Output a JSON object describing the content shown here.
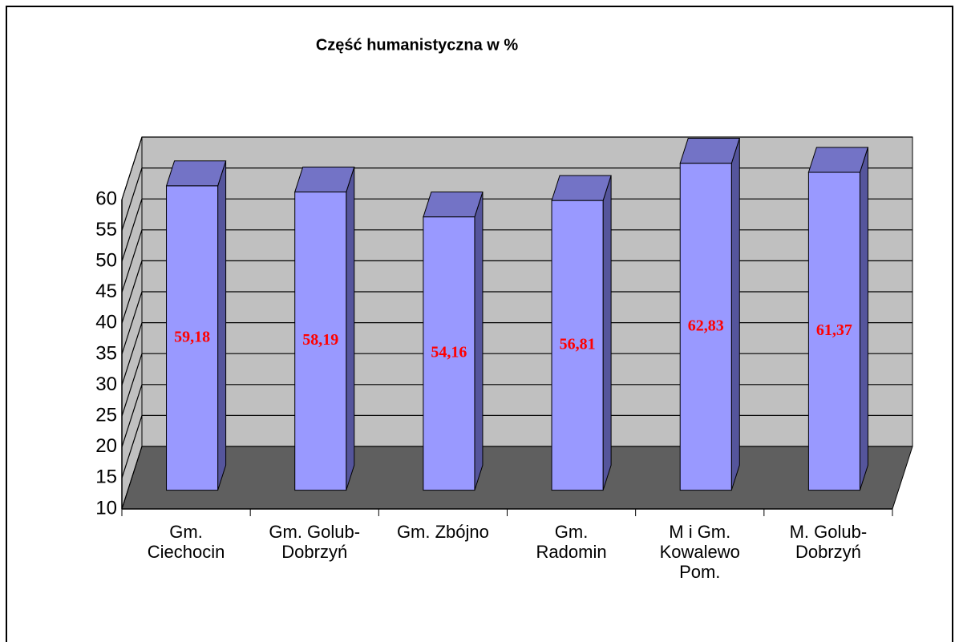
{
  "chart_data": {
    "type": "bar3d",
    "title": "Część humanistyczna w %",
    "categories": [
      "Gm.\nCiechocin",
      "Gm. Golub-\nDobrzyń",
      "Gm. Zbójno",
      "Gm.\nRadomin",
      "M i Gm.\nKowalewo\nPom.",
      "M. Golub-\nDobrzyń"
    ],
    "values": [
      59.18,
      58.19,
      54.16,
      56.81,
      62.83,
      61.37
    ],
    "value_labels": [
      "59,18",
      "58,19",
      "54,16",
      "56,81",
      "62,83",
      "61,37"
    ],
    "color": "#9999ff",
    "ylim": [
      10,
      60
    ],
    "yticks": [
      10,
      15,
      20,
      25,
      30,
      35,
      40,
      45,
      50,
      55,
      60
    ],
    "grid": true
  }
}
